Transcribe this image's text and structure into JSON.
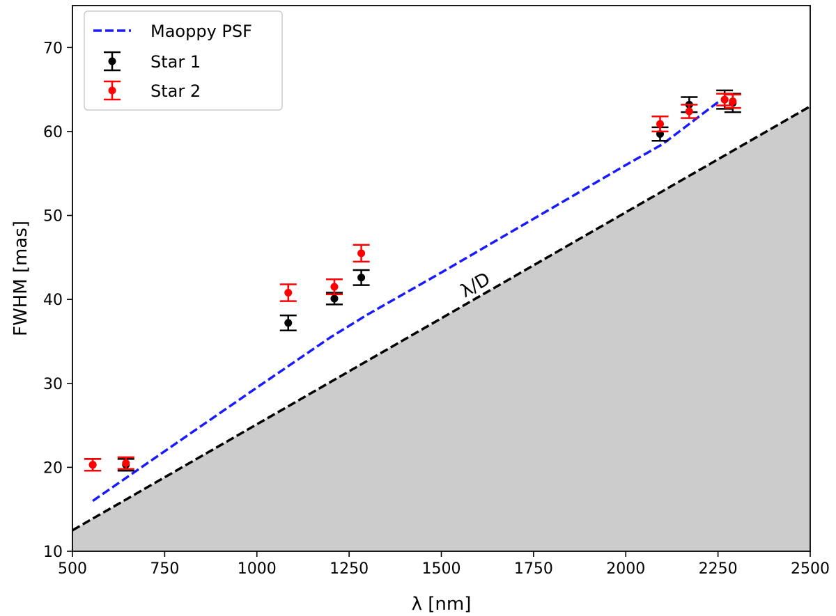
{
  "chart_data": {
    "type": "scatter",
    "xlabel": "λ [nm]",
    "ylabel": "FWHM [mas]",
    "xlim": [
      500,
      2500
    ],
    "ylim": [
      10,
      75
    ],
    "xticks": [
      500,
      750,
      1000,
      1250,
      1500,
      1750,
      2000,
      2250,
      2500
    ],
    "yticks": [
      10,
      20,
      30,
      40,
      50,
      60,
      70
    ],
    "grid": false,
    "legend_position": "top-left",
    "diffraction_limit": {
      "label": "λ/D",
      "x": [
        500,
        2500
      ],
      "y": [
        12.5,
        63
      ],
      "color": "#000000",
      "fill_color": "#cccccc"
    },
    "series": [
      {
        "name": "Maoppy PSF",
        "kind": "dashed-line",
        "color": "#1a1aff",
        "x": [
          555,
          1000,
          1200,
          1300,
          1500,
          2000,
          2100,
          2250
        ],
        "y": [
          16,
          29.5,
          35.5,
          38.2,
          43.2,
          56,
          58.5,
          63.5
        ]
      },
      {
        "name": "Star 1",
        "kind": "errorbar",
        "color": "#000000",
        "x": [
          555,
          645,
          1085,
          1210,
          1283,
          2093,
          2172,
          2268,
          2290
        ],
        "y": [
          20.3,
          20.3,
          37.2,
          40.1,
          42.6,
          59.7,
          63.2,
          63.8,
          63.4
        ],
        "err": [
          0.7,
          0.7,
          0.9,
          0.7,
          0.9,
          0.8,
          0.9,
          1.1,
          1.1
        ]
      },
      {
        "name": "Star 2",
        "kind": "errorbar",
        "color": "#ff0000",
        "x": [
          555,
          645,
          1085,
          1210,
          1283,
          2093,
          2172,
          2268,
          2290
        ],
        "y": [
          20.3,
          20.5,
          40.8,
          41.5,
          45.5,
          60.9,
          62.4,
          63.8,
          63.6
        ],
        "err": [
          0.7,
          0.7,
          1.0,
          0.9,
          1.0,
          0.9,
          0.8,
          0.7,
          0.8
        ]
      }
    ]
  }
}
